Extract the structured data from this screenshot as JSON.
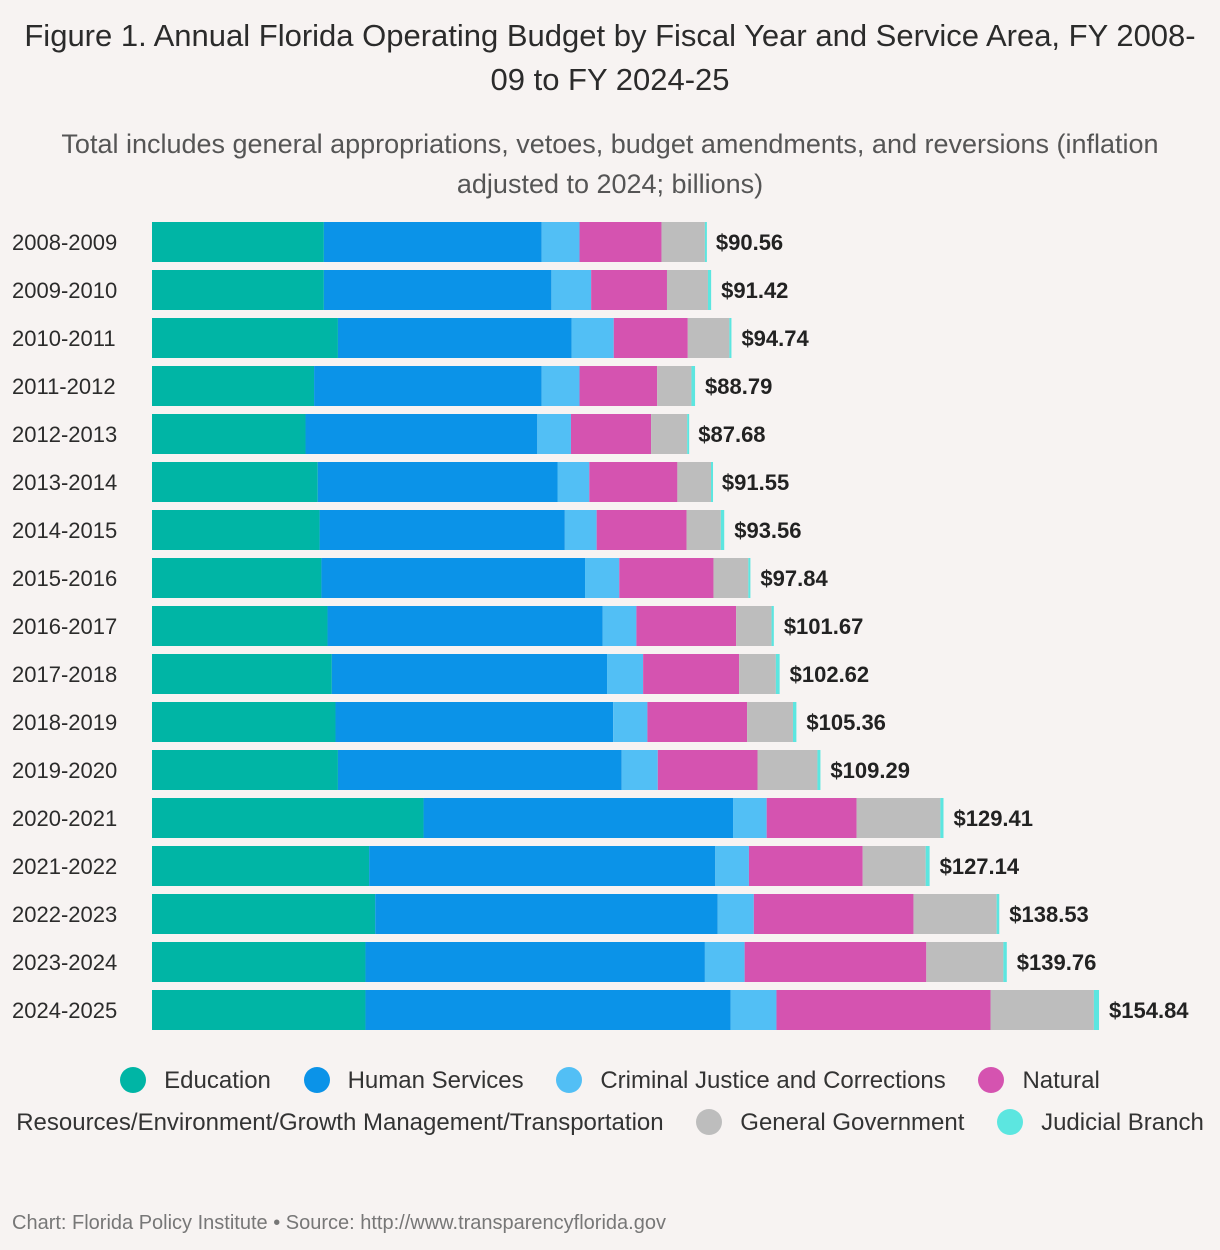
{
  "title": "Figure 1. Annual Florida Operating Budget by Fiscal Year and Service Area, FY 2008-09 to FY 2024-25",
  "subtitle": "Total includes general appropriations, vetoes, budget amendments, and reversions (inflation adjusted to 2024; billions)",
  "source": "Chart: Florida Policy Institute • Source: http://www.transparencyflorida.gov",
  "colors": {
    "Education": "#00b5a5",
    "Human Services": "#0b93e8",
    "Criminal Justice and Corrections": "#52bff5",
    "Natural Resources/Environment/Growth Management/Transportation": "#d553b0",
    "General Government": "#bdbdbd",
    "Judicial Branch": "#5ce6e0"
  },
  "legend": [
    {
      "label": "Education",
      "color": "#00b5a5"
    },
    {
      "label": "Human Services",
      "color": "#0b93e8"
    },
    {
      "label": "Criminal Justice and Corrections",
      "color": "#52bff5"
    },
    {
      "label": "Natural Resources/Environment/Growth Management/Transportation",
      "color": "#d553b0"
    },
    {
      "label": "General Government",
      "color": "#bdbdbd"
    },
    {
      "label": "Judicial Branch",
      "color": "#5ce6e0"
    }
  ],
  "chart_data": {
    "type": "bar",
    "orientation": "horizontal",
    "stacked": true,
    "title": "Figure 1. Annual Florida Operating Budget by Fiscal Year and Service Area, FY 2008-09 to FY 2024-25",
    "xlabel": "",
    "ylabel": "",
    "xlim": [
      0,
      155
    ],
    "grid": false,
    "legend_position": "bottom",
    "categories": [
      "2008-2009",
      "2009-2010",
      "2010-2011",
      "2011-2012",
      "2012-2013",
      "2013-2014",
      "2014-2015",
      "2015-2016",
      "2016-2017",
      "2017-2018",
      "2018-2019",
      "2019-2020",
      "2020-2021",
      "2021-2022",
      "2022-2023",
      "2023-2024",
      "2024-2025"
    ],
    "series": [
      {
        "name": "Education",
        "values": [
          28.1,
          28.1,
          30.4,
          26.5,
          25.1,
          27.1,
          27.4,
          27.7,
          28.7,
          29.4,
          30.0,
          30.4,
          44.4,
          35.5,
          36.5,
          34.9,
          34.9
        ]
      },
      {
        "name": "Human Services",
        "values": [
          35.6,
          37.2,
          38.2,
          37.2,
          37.9,
          39.2,
          40.1,
          43.1,
          45.0,
          45.0,
          45.4,
          46.4,
          50.6,
          56.6,
          56.0,
          55.5,
          59.7
        ]
      },
      {
        "name": "Criminal Justice and Corrections",
        "values": [
          6.2,
          6.5,
          6.9,
          6.2,
          5.5,
          5.2,
          5.2,
          5.6,
          5.5,
          5.9,
          5.6,
          5.9,
          5.5,
          5.5,
          5.9,
          6.5,
          7.5
        ]
      },
      {
        "name": "Natural Resources/Environment/Growth Management/Transportation",
        "values": [
          13.4,
          12.4,
          12.1,
          12.7,
          13.1,
          14.4,
          14.7,
          15.4,
          16.3,
          15.7,
          16.3,
          16.3,
          14.7,
          18.6,
          26.1,
          29.7,
          35.0
        ]
      },
      {
        "name": "General Government",
        "values": [
          7.1,
          6.7,
          6.8,
          5.6,
          5.9,
          5.5,
          5.6,
          5.7,
          5.8,
          6.0,
          7.5,
          9.8,
          13.7,
          10.3,
          13.6,
          12.6,
          16.9
        ]
      },
      {
        "name": "Judicial Branch",
        "values": [
          0.16,
          0.52,
          0.34,
          0.59,
          0.18,
          0.15,
          0.56,
          0.34,
          0.37,
          0.62,
          0.56,
          0.49,
          0.51,
          0.64,
          0.43,
          0.56,
          0.84
        ]
      }
    ],
    "totals": [
      "$90.56",
      "$91.42",
      "$94.74",
      "$88.79",
      "$87.68",
      "$91.55",
      "$93.56",
      "$97.84",
      "$101.67",
      "$102.62",
      "$105.36",
      "$109.29",
      "$129.41",
      "$127.14",
      "$138.53",
      "$139.76",
      "$154.84"
    ],
    "total_values": [
      90.56,
      91.42,
      94.74,
      88.79,
      87.68,
      91.55,
      93.56,
      97.84,
      101.67,
      102.62,
      105.36,
      109.29,
      129.41,
      127.14,
      138.53,
      139.76,
      154.84
    ]
  }
}
